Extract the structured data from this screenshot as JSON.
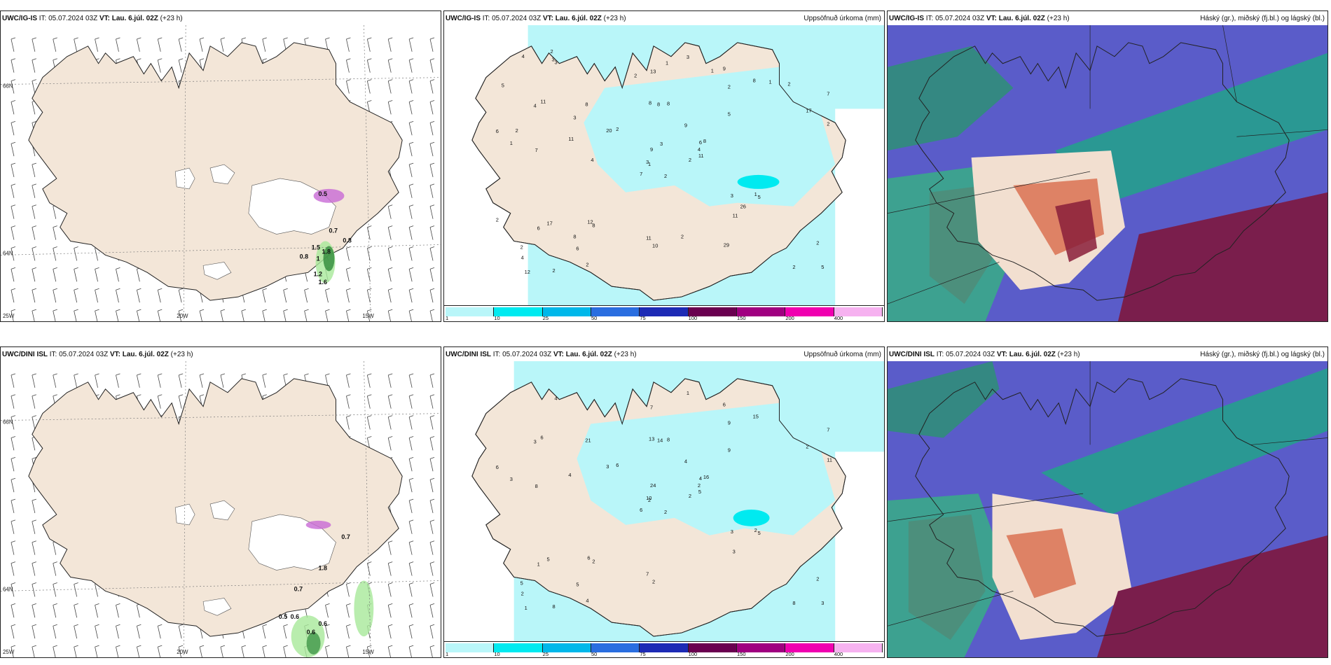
{
  "panels": [
    {
      "model": "UWC/IG-IS",
      "issue": "IT: 05.07.2024 03Z",
      "valid_label": "VT:",
      "valid": "Lau. 6.júl. 02Z",
      "lead": "(+23 h)",
      "product": ""
    },
    {
      "model": "UWC/IG-IS",
      "issue": "IT: 05.07.2024 03Z",
      "valid_label": "VT:",
      "valid": "Lau. 6.júl. 02Z",
      "lead": "(+23 h)",
      "product": "Uppsöfnuð úrkoma (mm)"
    },
    {
      "model": "UWC/IG-IS",
      "issue": "IT: 05.07.2024 03Z",
      "valid_label": "VT:",
      "valid": "Lau. 6.júl. 02Z",
      "lead": "(+23 h)",
      "product": "Háský (gr.), miðský (fj.bl.) og lágský (bl.)"
    },
    {
      "model": "UWC/DINI ISL",
      "issue": "IT: 05.07.2024 03Z",
      "valid_label": "VT:",
      "valid": "Lau. 6.júl. 02Z",
      "lead": "(+23 h)",
      "product": ""
    },
    {
      "model": "UWC/DINI ISL",
      "issue": "IT: 05.07.2024 03Z",
      "valid_label": "VT:",
      "valid": "Lau. 6.júl. 02Z",
      "lead": "(+23 h)",
      "product": "Uppsöfnuð úrkoma (mm)"
    },
    {
      "model": "UWC/DINI ISL",
      "issue": "IT: 05.07.2024 03Z",
      "valid_label": "VT:",
      "valid": "Lau. 6.júl. 02Z",
      "lead": "(+23 h)",
      "product": "Háský (gr.), miðský (fj.bl.) og lágský (bl.)"
    }
  ],
  "graticule": {
    "lat_66": "66N",
    "lat_64": "64N",
    "lon_25": "25W",
    "lon_20": "20W",
    "lon_15": "15W"
  },
  "legend": {
    "ticks": [
      "1",
      "10",
      "25",
      "50",
      "75",
      "100",
      "150",
      "200",
      "400"
    ],
    "colors": [
      "#b9f6f9",
      "#00eaf0",
      "#00b8ea",
      "#2a6ee0",
      "#1d2bb5",
      "#6a0050",
      "#a00080",
      "#f000b0",
      "#f6b2f0"
    ]
  },
  "precip_values_top": [
    "2",
    "4",
    "1",
    "2",
    "6",
    "8",
    "9",
    "8",
    "2",
    "2",
    "3",
    "5",
    "7",
    "7",
    "7",
    "5",
    "2",
    "8",
    "9",
    "17",
    "2",
    "4",
    "6",
    "8",
    "8",
    "5",
    "11",
    "13",
    "1",
    "3",
    "2",
    "3",
    "11",
    "9",
    "8",
    "8",
    "12",
    "2",
    "2",
    "1",
    "3",
    "20",
    "11",
    "11",
    "2",
    "6",
    "4",
    "12",
    "10",
    "11",
    "6",
    "17",
    "5",
    "26",
    "29",
    "8",
    "3",
    "4",
    "2",
    "2",
    "1",
    "4",
    "2",
    "3",
    "1",
    "2",
    "1",
    "2",
    "3",
    "2"
  ],
  "precip_values_bottom": [
    "2",
    "3",
    "2",
    "5",
    "4",
    "2",
    "6",
    "8",
    "9",
    "2",
    "4",
    "3",
    "8",
    "7",
    "6",
    "9",
    "8",
    "13",
    "4",
    "5",
    "6",
    "2",
    "5",
    "14",
    "16",
    "5",
    "6",
    "7",
    "3",
    "3",
    "11",
    "10",
    "7",
    "24",
    "21",
    "15",
    "6",
    "8",
    "2",
    "2",
    "1",
    "3",
    "4",
    "3",
    "4",
    "6",
    "2",
    "1",
    "2",
    "5",
    "1",
    "2"
  ],
  "pcp_labels_top": [
    "0.5",
    "0.7",
    "1.5",
    "1.8",
    "0.8",
    "0.8",
    "1",
    "1.2",
    "1.6"
  ],
  "pcp_labels_bottom": [
    "0.7",
    "1.8",
    "0.7",
    "0.5",
    "0.6",
    "0.6",
    "0.6"
  ]
}
